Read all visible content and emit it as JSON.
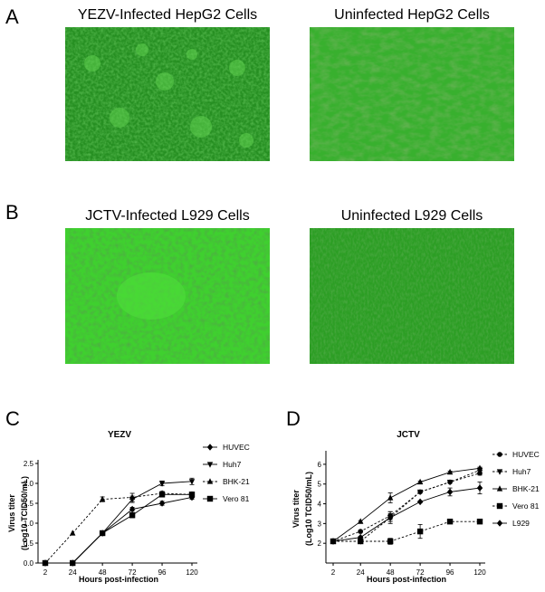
{
  "panels": {
    "a": {
      "letter": "A",
      "left_title": "YEZV-Infected HepG2 Cells",
      "right_title": "Uninfected HepG2 Cells"
    },
    "b": {
      "letter": "B",
      "left_title": "JCTV-Infected L929 Cells",
      "right_title": "Uninfected L929 Cells"
    },
    "c": {
      "letter": "C"
    },
    "d": {
      "letter": "D"
    }
  },
  "colors": {
    "micro_base": "#2b9b25",
    "micro_dark": "#1d6f1a",
    "micro_light": "#58c84a",
    "bright_infected": "#3ad82c"
  },
  "chart_data": [
    {
      "type": "line",
      "title": "YEZV",
      "xlabel": "Hours post-infection",
      "ylabel": "Virus titer",
      "ylabel2": "(Log10 TCID50/mL)",
      "x": [
        2,
        24,
        48,
        72,
        96,
        120
      ],
      "xticks": [
        "2",
        "24",
        "48",
        "72",
        "96",
        "120"
      ],
      "ylim": [
        0,
        2.5
      ],
      "yticks": [
        "0.0",
        "0.5",
        "1.0",
        "1.5",
        "2.0",
        "2.5"
      ],
      "series": [
        {
          "name": "HUVEC",
          "marker": "diamond",
          "dash": "solid",
          "values": [
            0,
            0,
            0.75,
            1.35,
            1.5,
            1.65
          ],
          "err": [
            0,
            0,
            0.03,
            0.05,
            0.05,
            0.05
          ]
        },
        {
          "name": "Huh7",
          "marker": "triangle-down",
          "dash": "solid",
          "values": [
            0,
            0,
            0.75,
            1.6,
            2.0,
            2.05
          ],
          "err": [
            0,
            0,
            0.03,
            0.08,
            0.06,
            0.08
          ]
        },
        {
          "name": "BHK-21",
          "marker": "triangle-up",
          "dash": "dashed",
          "values": [
            0,
            0.75,
            1.6,
            1.65,
            1.75,
            1.72
          ],
          "err": [
            0,
            0.02,
            0.06,
            0.1,
            0.05,
            0.05
          ]
        },
        {
          "name": "Vero 81",
          "marker": "square",
          "dash": "solid",
          "values": [
            0,
            0,
            0.75,
            1.2,
            1.72,
            1.72
          ],
          "err": [
            0,
            0,
            0.03,
            0.06,
            0.06,
            0.06
          ]
        }
      ]
    },
    {
      "type": "line",
      "title": "JCTV",
      "xlabel": "Hours post-infection",
      "ylabel": "Virus titer",
      "ylabel2": "(Log10 TCID50/mL)",
      "x": [
        2,
        24,
        48,
        72,
        96,
        120
      ],
      "xticks": [
        "2",
        "24",
        "48",
        "72",
        "96",
        "120"
      ],
      "ylim": [
        1,
        6.5
      ],
      "yticks": [
        "2",
        "3",
        "4",
        "5",
        "6"
      ],
      "series": [
        {
          "name": "HUVEC",
          "marker": "circle",
          "dash": "dashed",
          "values": [
            2.1,
            2.6,
            3.4,
            4.6,
            5.1,
            5.55
          ],
          "err": [
            0.05,
            0.05,
            0.2,
            0.05,
            0.05,
            0.1
          ]
        },
        {
          "name": "Huh7",
          "marker": "triangle-down",
          "dash": "dashed",
          "values": [
            2.1,
            2.1,
            3.3,
            4.6,
            5.1,
            5.7
          ],
          "err": [
            0.05,
            0.05,
            0.2,
            0.05,
            0.05,
            0.15
          ]
        },
        {
          "name": "BHK-21",
          "marker": "triangle-up",
          "dash": "solid",
          "values": [
            2.1,
            3.1,
            4.3,
            5.1,
            5.6,
            5.8
          ],
          "err": [
            0.05,
            0.05,
            0.25,
            0.05,
            0.05,
            0.05
          ]
        },
        {
          "name": "Vero 81",
          "marker": "square",
          "dash": "dashed",
          "values": [
            2.1,
            2.1,
            2.1,
            2.6,
            3.1,
            3.1
          ],
          "err": [
            0.05,
            0.05,
            0.15,
            0.35,
            0.1,
            0.05
          ]
        },
        {
          "name": "L929",
          "marker": "diamond",
          "dash": "solid",
          "values": [
            2.1,
            2.3,
            3.3,
            4.1,
            4.6,
            4.8
          ],
          "err": [
            0.05,
            0.05,
            0.3,
            0.05,
            0.2,
            0.3
          ]
        }
      ]
    }
  ]
}
